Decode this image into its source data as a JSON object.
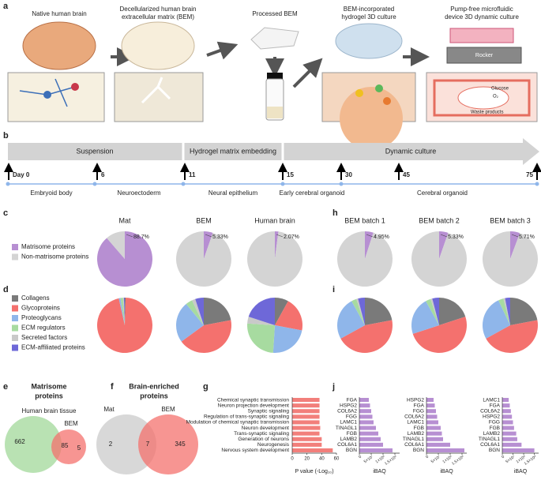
{
  "figure": {
    "panel_labels": [
      "a",
      "b",
      "c",
      "d",
      "e",
      "f",
      "g",
      "h",
      "i",
      "j"
    ],
    "a": {
      "steps": [
        [
          "Native human brain"
        ],
        [
          "Decellularized human brain",
          "extracellular matrix (BEM)"
        ],
        [
          "Processed BEM"
        ],
        [
          "BEM-incorporated",
          "hydrogel 3D culture"
        ],
        [
          "Pump-free microfluidic",
          "device 3D dynamic culture"
        ]
      ],
      "rocker": "Rocker",
      "glucose": "Glucose",
      "oxygen": "O₂",
      "waste": "Waste products"
    },
    "b": {
      "phases": [
        "Suspension",
        "Hydrogel matrix embedding",
        "Dynamic culture"
      ],
      "days": [
        "Day 0",
        "6",
        "11",
        "15",
        "30",
        "45",
        "75"
      ],
      "stages": [
        "Embryoid body",
        "Neuroectoderm",
        "Neural epithelium",
        "Early cerebral organoid",
        "Cerebral organoid"
      ]
    },
    "e": {
      "title": [
        "Matrisome",
        "proteins"
      ],
      "set_a": "Human brain tissue",
      "set_b": "BEM",
      "counts": [
        662,
        85,
        5
      ]
    },
    "f": {
      "title": [
        "Brain-enriched",
        "proteins"
      ],
      "sets": [
        "Mat",
        "BEM"
      ],
      "counts": [
        2,
        7,
        345
      ]
    }
  },
  "chart_data": [
    {
      "type": "pie",
      "legend": [
        "Matrisome proteins",
        "Non-matrisome proteins"
      ],
      "colors": [
        "#b78fd2",
        "#d4d4d4"
      ],
      "pies": [
        {
          "title": "Mat",
          "values": [
            88.7,
            11.3
          ],
          "label": "88.7%"
        },
        {
          "title": "BEM",
          "values": [
            5.33,
            94.67
          ],
          "label": "5.33%"
        },
        {
          "title": "Human brain",
          "values": [
            2.07,
            97.93
          ],
          "label": "2.07%"
        },
        {
          "title": "BEM batch 1",
          "values": [
            4.95,
            95.05
          ],
          "label": "4.95%"
        },
        {
          "title": "BEM batch 2",
          "values": [
            5.33,
            94.67
          ],
          "label": "5.33%"
        },
        {
          "title": "BEM batch 3",
          "values": [
            5.71,
            94.29
          ],
          "label": "5.71%"
        }
      ]
    },
    {
      "type": "pie",
      "legend": [
        "Collagens",
        "Glycoproteins",
        "Proteoglycans",
        "ECM regulators",
        "Secreted factors",
        "ECM-affiliated proteins"
      ],
      "colors": [
        "#7a7a7a",
        "#f4716e",
        "#8fb6ea",
        "#a7dba0",
        "#c9c9c9",
        "#6e68d8"
      ],
      "pies": [
        {
          "values": [
            0.5,
            96,
            1,
            1.5,
            0.5,
            0.5
          ]
        },
        {
          "values": [
            22,
            43,
            24,
            4,
            2,
            5
          ]
        },
        {
          "values": [
            8,
            20,
            23,
            25,
            4,
            20
          ]
        },
        {
          "values": [
            22,
            45,
            25,
            3,
            1,
            4
          ]
        },
        {
          "values": [
            20,
            50,
            22,
            3,
            1,
            4
          ]
        },
        {
          "values": [
            22,
            45,
            26,
            3,
            1,
            3
          ]
        }
      ]
    },
    {
      "type": "bar",
      "orientation": "horizontal",
      "color": "#f27f7b",
      "categories": [
        "Chemical synaptic transmission",
        "Neuron projection development",
        "Synaptic signaling",
        "Regulation of trans-synaptic signaling",
        "Modulation of chemical synaptic transmission",
        "Neuron development",
        "Trans-synaptic signaling",
        "Generation of neurons",
        "Neurogenesis",
        "Nervous system development"
      ],
      "values": [
        37,
        37,
        37,
        37,
        37,
        38,
        37,
        40,
        40,
        55
      ],
      "xlim": [
        0,
        60
      ],
      "xticks": [
        0,
        20,
        40,
        60
      ],
      "xlabel": "P value (-Log₁₀)"
    },
    {
      "type": "bar",
      "orientation": "horizontal",
      "color": "#b78fd2",
      "categories": [
        "FGA",
        "HSPG2",
        "COL6A2",
        "FGG",
        "LAMC1",
        "TINAGL1",
        "FGB",
        "LAMB2",
        "COL6A1",
        "BGN"
      ],
      "values": [
        40000000,
        45000000,
        50000000,
        55000000,
        60000000,
        70000000,
        80000000,
        90000000,
        100000000,
        140000000
      ],
      "xlim": [
        0,
        170000000
      ],
      "xticks": [
        0,
        {
          "value": 50000000,
          "label": "5×10⁷"
        },
        {
          "value": 100000000,
          "label": "1×10⁸"
        },
        {
          "value": 150000000,
          "label": "1.5×10⁸"
        }
      ],
      "xlabel": "iBAQ"
    },
    {
      "type": "bar",
      "orientation": "horizontal",
      "color": "#b78fd2",
      "categories": [
        "HSPG2",
        "FGA",
        "FGG",
        "COL6A2",
        "LAMC1",
        "FGB",
        "LAMB2",
        "TINAGL1",
        "COL6A1",
        "BGN"
      ],
      "values": [
        30000000,
        35000000,
        40000000,
        45000000,
        50000000,
        60000000,
        65000000,
        70000000,
        100000000,
        160000000
      ],
      "xlim": [
        0,
        170000000
      ],
      "xticks": [
        0,
        {
          "value": 50000000,
          "label": "5×10⁷"
        },
        {
          "value": 100000000,
          "label": "1×10⁸"
        },
        {
          "value": 150000000,
          "label": "1.5×10⁸"
        }
      ],
      "xlabel": "iBAQ"
    },
    {
      "type": "bar",
      "orientation": "horizontal",
      "color": "#b78fd2",
      "categories": [
        "LAMC1",
        "FGA",
        "COL6A2",
        "HSPG2",
        "FGG",
        "FGB",
        "LAMB2",
        "TINAGL1",
        "COL6A1",
        "BGN"
      ],
      "values": [
        30000000,
        35000000,
        40000000,
        45000000,
        50000000,
        55000000,
        65000000,
        70000000,
        90000000,
        150000000
      ],
      "xlim": [
        0,
        170000000
      ],
      "xticks": [
        0,
        {
          "value": 50000000,
          "label": "5×10⁷"
        },
        {
          "value": 100000000,
          "label": "1×10⁸"
        },
        {
          "value": 150000000,
          "label": "1.5×10⁸"
        }
      ],
      "xlabel": "iBAQ"
    }
  ]
}
